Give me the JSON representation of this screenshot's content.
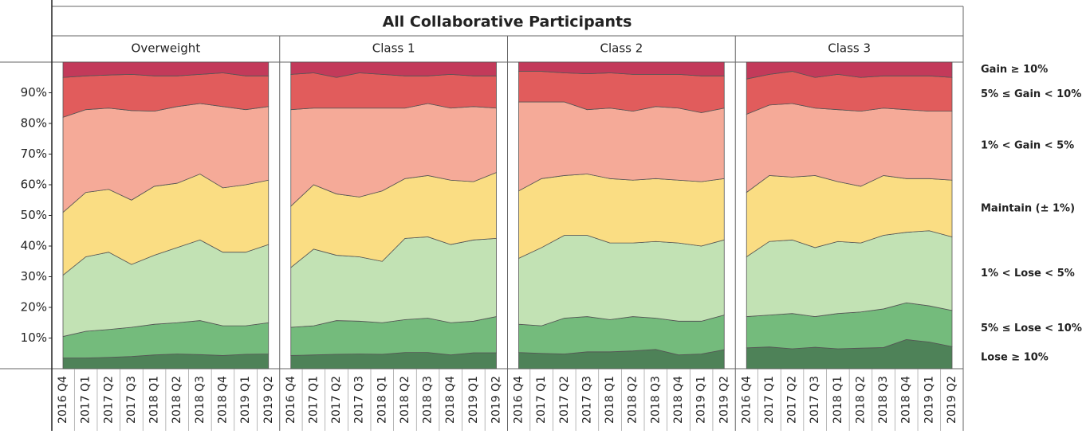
{
  "chart_data": {
    "type": "stacked-area",
    "title": "All Collaborative Participants",
    "categories": [
      "2016 Q4",
      "2017 Q1",
      "2017 Q2",
      "2017 Q3",
      "2018 Q1",
      "2018 Q2",
      "2018 Q3",
      "2018 Q4",
      "2019 Q1",
      "2019 Q2"
    ],
    "ylim": [
      0,
      100
    ],
    "yticks": [
      {
        "value": 10,
        "label": "10%"
      },
      {
        "value": 20,
        "label": "20%"
      },
      {
        "value": 30,
        "label": "30%"
      },
      {
        "value": 40,
        "label": "40%"
      },
      {
        "value": 50,
        "label": "50%"
      },
      {
        "value": 60,
        "label": "60%"
      },
      {
        "value": 70,
        "label": "70%"
      },
      {
        "value": 80,
        "label": "80%"
      },
      {
        "value": 90,
        "label": "90%"
      }
    ],
    "series": [
      {
        "name": "Lose ≥ 10%",
        "color": "#4e8258"
      },
      {
        "name": "5% ≤ Lose < 10%",
        "color": "#74bb7c"
      },
      {
        "name": "1% < Lose < 5%",
        "color": "#c2e2b4"
      },
      {
        "name": "Maintain (± 1%)",
        "color": "#fadd83"
      },
      {
        "name": "1% < Gain < 5%",
        "color": "#f5aa98"
      },
      {
        "name": "5% ≤ Gain < 10%",
        "color": "#e15c5c"
      },
      {
        "name": "Gain ≥ 10%",
        "color": "#c33a5a"
      }
    ],
    "panels": [
      {
        "title": "Overweight",
        "series": [
          {
            "values": [
              3.5,
              3.5,
              3.7,
              4.0,
              4.5,
              4.8,
              4.6,
              4.3,
              4.7,
              4.8
            ]
          },
          {
            "values": [
              7,
              8.7,
              9.1,
              9.5,
              10,
              10.2,
              11.1,
              9.7,
              9.3,
              10.2
            ]
          },
          {
            "values": [
              20,
              24.3,
              25.2,
              20.5,
              22.5,
              24.5,
              26.3,
              24,
              24,
              25.5
            ]
          },
          {
            "values": [
              20.5,
              21,
              20.5,
              21,
              22.5,
              21,
              21.5,
              21,
              22,
              21
            ]
          },
          {
            "values": [
              31,
              27,
              26.5,
              29.2,
              24.5,
              25,
              23,
              26.5,
              24.5,
              24
            ]
          },
          {
            "values": [
              13,
              11,
              10.8,
              11.8,
              11.5,
              10,
              9.5,
              11,
              11,
              10
            ]
          },
          {
            "values": [
              5,
              4.5,
              4.2,
              4,
              4.5,
              4.5,
              4,
              3.5,
              4.5,
              4.5
            ]
          }
        ]
      },
      {
        "title": "Class 1",
        "series": [
          {
            "values": [
              4.3,
              4.5,
              4.7,
              4.8,
              4.7,
              5.3,
              5.3,
              4.5,
              5.2,
              5.2
            ]
          },
          {
            "values": [
              9.2,
              9.5,
              11,
              10.7,
              10.3,
              10.7,
              11.2,
              10.5,
              10.3,
              11.8
            ]
          },
          {
            "values": [
              19.5,
              25,
              21.3,
              21,
              20,
              26.5,
              26.5,
              25.5,
              26.5,
              25.5
            ]
          },
          {
            "values": [
              20,
              21,
              20,
              19.5,
              23,
              19.5,
              20,
              21,
              19,
              21.5
            ]
          },
          {
            "values": [
              31.5,
              25,
              28,
              29,
              27,
              23,
              23.5,
              23.5,
              24.5,
              21
            ]
          },
          {
            "values": [
              11.5,
              11.5,
              10,
              11.5,
              11,
              10.5,
              9,
              11,
              10,
              10.5
            ]
          },
          {
            "values": [
              4,
              3.5,
              5,
              3.5,
              4,
              4.5,
              4.5,
              4,
              4.5,
              4.5
            ]
          }
        ]
      },
      {
        "title": "Class 2",
        "series": [
          {
            "values": [
              5.3,
              5,
              4.8,
              5.5,
              5.5,
              5.8,
              6.3,
              4.5,
              4.8,
              6.2
            ]
          },
          {
            "values": [
              9.2,
              9,
              11.7,
              11.5,
              10.5,
              11.2,
              10.2,
              11,
              10.7,
              11.3
            ]
          },
          {
            "values": [
              21.5,
              25.5,
              27,
              26.5,
              25,
              24,
              25,
              25.5,
              24.5,
              24.5
            ]
          },
          {
            "values": [
              22,
              22.5,
              19.5,
              20,
              21,
              20.5,
              20.5,
              20.5,
              21,
              20
            ]
          },
          {
            "values": [
              29,
              25,
              24,
              21,
              23,
              22.5,
              23.5,
              23.5,
              22.5,
              23
            ]
          },
          {
            "values": [
              10,
              10,
              9.5,
              11.7,
              11.5,
              12,
              10.5,
              11,
              12,
              10.5
            ]
          },
          {
            "values": [
              3,
              3,
              3.5,
              3.8,
              3.5,
              4,
              4,
              4,
              4.5,
              4.5
            ]
          }
        ]
      },
      {
        "title": "Class 3",
        "series": [
          {
            "values": [
              6.8,
              7.1,
              6.5,
              7,
              6.5,
              6.7,
              6.9,
              9.5,
              8.7,
              7.2
            ]
          },
          {
            "values": [
              10.2,
              10.4,
              11.5,
              10,
              11.5,
              11.8,
              12.6,
              12,
              11.8,
              11.8
            ]
          },
          {
            "values": [
              19.5,
              24,
              24,
              22.5,
              23.5,
              22.5,
              24,
              23,
              24.5,
              24
            ]
          },
          {
            "values": [
              21,
              21.5,
              20.5,
              23.5,
              19.5,
              18.5,
              19.5,
              17.5,
              17,
              18.5
            ]
          },
          {
            "values": [
              25.5,
              23,
              24,
              22,
              23.5,
              24.5,
              22,
              22.5,
              22,
              22.5
            ]
          },
          {
            "values": [
              11.5,
              10,
              10.5,
              10,
              11.5,
              11,
              10.5,
              11,
              11.5,
              11
            ]
          },
          {
            "values": [
              5.5,
              4,
              3,
              5,
              4,
              5,
              4.5,
              4.5,
              4.5,
              5
            ]
          }
        ]
      }
    ]
  }
}
